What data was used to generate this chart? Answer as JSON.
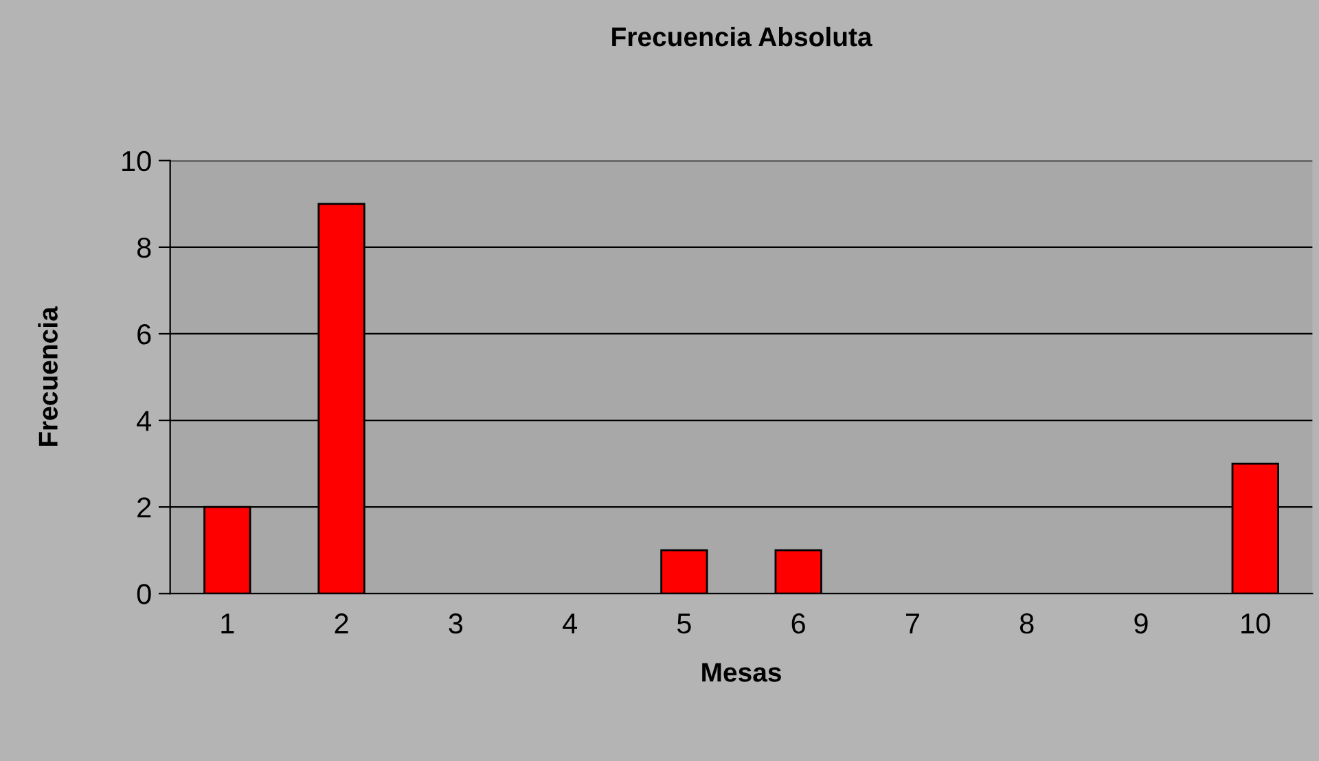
{
  "chart_data": {
    "type": "bar",
    "title": "Frecuencia Absoluta",
    "xlabel": "Mesas",
    "ylabel": "Frecuencia",
    "categories": [
      "1",
      "2",
      "3",
      "4",
      "5",
      "6",
      "7",
      "8",
      "9",
      "10"
    ],
    "values": [
      2,
      9,
      0,
      0,
      1,
      1,
      0,
      0,
      0,
      3
    ],
    "color": "#ff0000",
    "ylim": [
      0,
      10
    ],
    "yticks": [
      0,
      2,
      4,
      6,
      8,
      10
    ],
    "grid": "y"
  }
}
